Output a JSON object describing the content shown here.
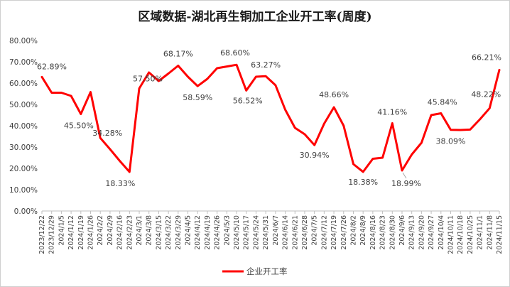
{
  "chart_data": {
    "type": "line",
    "title": "区域数据-湖北再生铜加工企业开工率(周度)",
    "ylim": [
      0,
      80
    ],
    "yticks": [
      0,
      10,
      20,
      30,
      40,
      50,
      60,
      70,
      80
    ],
    "ytick_labels": [
      "0.00%",
      "10.00%",
      "20.00%",
      "30.00%",
      "40.00%",
      "50.00%",
      "60.00%",
      "70.00%",
      "80.00%"
    ],
    "grid": false,
    "legend_position": "bottom",
    "series_color": "#ff0000",
    "x": [
      "2023/12/22",
      "2023/12/29",
      "2024/1/5",
      "2024/1/12",
      "2024/1/19",
      "2024/1/26",
      "2024/2/2",
      "2024/2/9",
      "2024/2/16",
      "2024/2/23",
      "2024/3/1",
      "2024/3/8",
      "2024/3/15",
      "2024/3/22",
      "2024/3/29",
      "2024/4/5",
      "2024/4/12",
      "2024/4/19",
      "2024/4/26",
      "2024/5/3",
      "2024/5/10",
      "2024/5/17",
      "2024/5/24",
      "2024/5/31",
      "2024/6/7",
      "2024/6/14",
      "2024/6/21",
      "2024/6/28",
      "2024/7/5",
      "2024/7/12",
      "2024/7/19",
      "2024/7/26",
      "2024/8/2",
      "2024/8/9",
      "2024/8/16",
      "2024/8/23",
      "2024/8/30",
      "2024/9/6",
      "2024/9/13",
      "2024/9/20",
      "2024/9/27",
      "2024/10/4",
      "2024/10/11",
      "2024/10/18",
      "2024/10/25",
      "2024/11/1",
      "2024/11/8",
      "2024/11/15"
    ],
    "series": [
      {
        "name": "企业开工率",
        "values": [
          62.89,
          55.5,
          55.5,
          54.0,
          45.5,
          55.8,
          34.28,
          29.0,
          23.5,
          18.33,
          57.5,
          65.0,
          61.0,
          64.5,
          68.17,
          63.0,
          58.59,
          62.0,
          67.0,
          67.8,
          68.6,
          56.52,
          63.0,
          63.27,
          59.0,
          47.5,
          39.0,
          36.0,
          30.94,
          41.0,
          48.66,
          40.0,
          22.0,
          18.38,
          24.5,
          25.0,
          41.16,
          18.99,
          26.5,
          32.0,
          45.0,
          45.84,
          38.09,
          38.0,
          38.2,
          43.0,
          48.22,
          66.21
        ]
      }
    ],
    "data_labels": [
      {
        "x": "2023/12/22",
        "text": "62.89%"
      },
      {
        "x": "2024/1/19",
        "text": "45.50%"
      },
      {
        "x": "2024/2/2",
        "text": "34.28%"
      },
      {
        "x": "2024/2/23",
        "text": "18.33%"
      },
      {
        "x": "2024/3/1",
        "text": "57.50%"
      },
      {
        "x": "2024/3/29",
        "text": "68.17%"
      },
      {
        "x": "2024/4/12",
        "text": "58.59%"
      },
      {
        "x": "2024/5/10",
        "text": "68.60%"
      },
      {
        "x": "2024/5/17",
        "text": "56.52%"
      },
      {
        "x": "2024/5/31",
        "text": "63.27%"
      },
      {
        "x": "2024/7/5",
        "text": "30.94%"
      },
      {
        "x": "2024/7/19",
        "text": "48.66%"
      },
      {
        "x": "2024/8/9",
        "text": "18.38%"
      },
      {
        "x": "2024/8/30",
        "text": "41.16%"
      },
      {
        "x": "2024/9/6",
        "text": "18.99%"
      },
      {
        "x": "2024/10/4",
        "text": "45.84%"
      },
      {
        "x": "2024/10/11",
        "text": "38.09%"
      },
      {
        "x": "2024/11/8",
        "text": "48.22%"
      },
      {
        "x": "2024/11/15",
        "text": "66.21%"
      }
    ]
  }
}
